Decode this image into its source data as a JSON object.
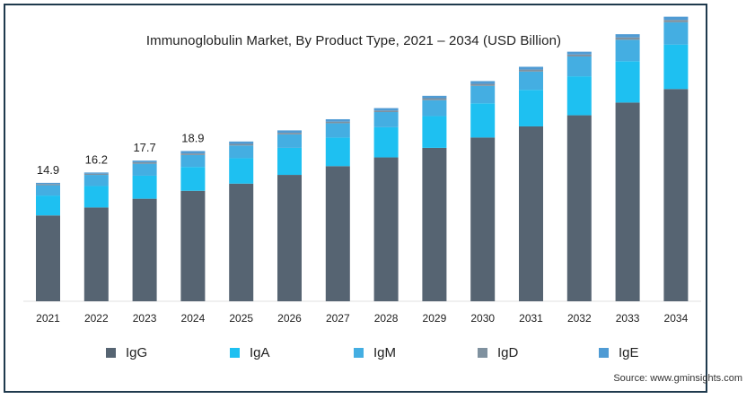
{
  "chart_data": {
    "type": "bar",
    "stacked": true,
    "title": "Immunoglobulin Market, By Product Type, 2021 – 2034 (USD Billion)",
    "xlabel": "",
    "ylabel": "",
    "categories": [
      "2021",
      "2022",
      "2023",
      "2024",
      "2025",
      "2026",
      "2027",
      "2028",
      "2029",
      "2030",
      "2031",
      "2032",
      "2033",
      "2034"
    ],
    "total_labels": [
      "14.9",
      "16.2",
      "17.7",
      "18.9",
      "",
      "",
      "",
      "",
      "",
      "",
      "",
      "",
      "",
      ""
    ],
    "series": [
      {
        "name": "IgG",
        "color": "#566472",
        "values": [
          10.8,
          11.8,
          12.9,
          13.9,
          14.8,
          15.9,
          17.0,
          18.1,
          19.3,
          20.6,
          22.0,
          23.4,
          25.0,
          26.7
        ]
      },
      {
        "name": "IgA",
        "color": "#1ec0f1",
        "values": [
          2.5,
          2.7,
          2.9,
          3.0,
          3.2,
          3.4,
          3.6,
          3.8,
          4.0,
          4.3,
          4.6,
          4.9,
          5.2,
          5.6
        ]
      },
      {
        "name": "IgM",
        "color": "#44aee2",
        "values": [
          1.3,
          1.4,
          1.5,
          1.5,
          1.6,
          1.7,
          1.8,
          1.9,
          2.0,
          2.2,
          2.3,
          2.5,
          2.7,
          2.8
        ]
      },
      {
        "name": "IgD",
        "color": "#7f919f",
        "values": [
          0.15,
          0.15,
          0.2,
          0.2,
          0.2,
          0.2,
          0.2,
          0.2,
          0.25,
          0.25,
          0.25,
          0.25,
          0.3,
          0.3
        ]
      },
      {
        "name": "IgE",
        "color": "#4f9bd4",
        "values": [
          0.15,
          0.15,
          0.2,
          0.3,
          0.3,
          0.3,
          0.3,
          0.3,
          0.3,
          0.35,
          0.35,
          0.35,
          0.4,
          0.4
        ]
      }
    ],
    "ylim": [
      0,
      37
    ],
    "grid": false,
    "legend_position": "bottom"
  },
  "source": "Source: www.gminsights.com"
}
